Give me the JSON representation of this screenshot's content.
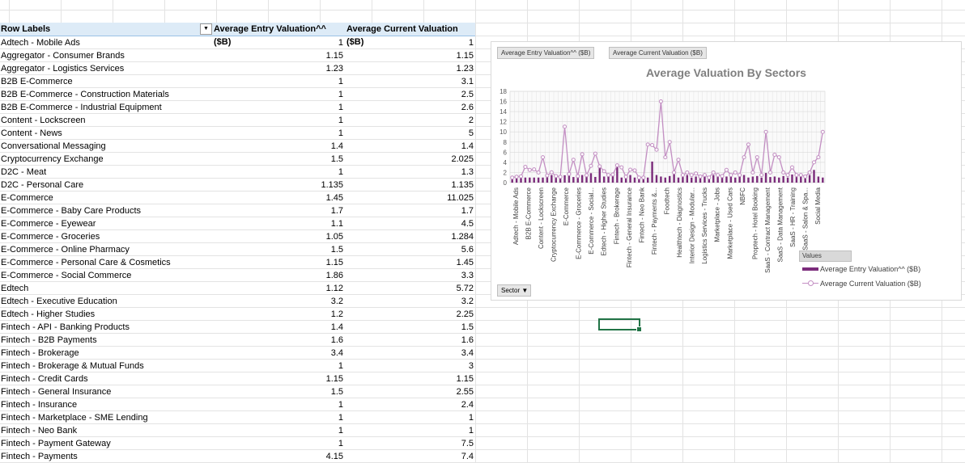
{
  "pivot": {
    "headers": {
      "row_labels": "Row Labels",
      "entry": "Average Entry Valuation^^ ($B)",
      "current": "Average Current Valuation ($B)"
    },
    "rows": [
      {
        "label": "Adtech - Mobile Ads",
        "entry": "1",
        "current": "1"
      },
      {
        "label": "Aggregator - Consumer Brands",
        "entry": "1.15",
        "current": "1.15"
      },
      {
        "label": "Aggregator - Logistics Services",
        "entry": "1.23",
        "current": "1.23"
      },
      {
        "label": "B2B E-Commerce",
        "entry": "1",
        "current": "3.1"
      },
      {
        "label": "B2B E-Commerce - Construction Materials",
        "entry": "1",
        "current": "2.5"
      },
      {
        "label": "B2B E-Commerce - Industrial Equipment",
        "entry": "1",
        "current": "2.6"
      },
      {
        "label": "Content - Lockscreen",
        "entry": "1",
        "current": "2"
      },
      {
        "label": "Content - News",
        "entry": "1",
        "current": "5"
      },
      {
        "label": "Conversational Messaging",
        "entry": "1.4",
        "current": "1.4"
      },
      {
        "label": "Cryptocurrency Exchange",
        "entry": "1.5",
        "current": "2.025"
      },
      {
        "label": "D2C - Meat",
        "entry": "1",
        "current": "1.3"
      },
      {
        "label": "D2C - Personal Care",
        "entry": "1.135",
        "current": "1.135"
      },
      {
        "label": "E-Commerce",
        "entry": "1.45",
        "current": "11.025"
      },
      {
        "label": "E-Commerce - Baby Care Products",
        "entry": "1.7",
        "current": "1.7"
      },
      {
        "label": "E-Commerce - Eyewear",
        "entry": "1.1",
        "current": "4.5"
      },
      {
        "label": "E-Commerce - Groceries",
        "entry": "1.05",
        "current": "1.284"
      },
      {
        "label": "E-Commerce - Online Pharmacy",
        "entry": "1.5",
        "current": "5.6"
      },
      {
        "label": "E-Commerce - Personal Care & Cosmetics",
        "entry": "1.15",
        "current": "1.45"
      },
      {
        "label": "E-Commerce - Social Commerce",
        "entry": "1.86",
        "current": "3.3"
      },
      {
        "label": "Edtech",
        "entry": "1.12",
        "current": "5.72"
      },
      {
        "label": "Edtech - Executive Education",
        "entry": "3.2",
        "current": "3.2"
      },
      {
        "label": "Edtech - Higher Studies",
        "entry": "1.2",
        "current": "2.25"
      },
      {
        "label": "Fintech - API - Banking Products",
        "entry": "1.4",
        "current": "1.5"
      },
      {
        "label": "Fintech - B2B Payments",
        "entry": "1.6",
        "current": "1.6"
      },
      {
        "label": "Fintech - Brokerage",
        "entry": "3.4",
        "current": "3.4"
      },
      {
        "label": "Fintech - Brokerage & Mutual Funds",
        "entry": "1",
        "current": "3"
      },
      {
        "label": "Fintech - Credit Cards",
        "entry": "1.15",
        "current": "1.15"
      },
      {
        "label": "Fintech - General Insurance",
        "entry": "1.5",
        "current": "2.55"
      },
      {
        "label": "Fintech - Insurance",
        "entry": "1",
        "current": "2.4"
      },
      {
        "label": "Fintech - Marketplace - SME Lending",
        "entry": "1",
        "current": "1"
      },
      {
        "label": "Fintech - Neo Bank",
        "entry": "1",
        "current": "1"
      },
      {
        "label": "Fintech - Payment Gateway",
        "entry": "1",
        "current": "7.5"
      },
      {
        "label": "Fintech - Payments",
        "entry": "4.15",
        "current": "7.4"
      }
    ]
  },
  "chart": {
    "field_buttons": [
      "Average Entry Valuation^^ ($B)",
      "Average Current Valuation ($B)"
    ],
    "axis_field_button": "Sector",
    "legend_title": "Values",
    "colors": {
      "entry": "#7b2c7b",
      "current": "#c38fc3"
    }
  },
  "chart_data": {
    "type": "bar",
    "title": "Average Valuation By Sectors",
    "xlabel": "",
    "ylabel": "",
    "ylim": [
      0,
      18
    ],
    "yticks": [
      0,
      2,
      4,
      6,
      8,
      10,
      12,
      14,
      16,
      18
    ],
    "grid": true,
    "legend": "bottom-right",
    "category_labels": [
      "Adtech - Mobile Ads",
      "B2B E-Commerce",
      "Content - Lockscreen",
      "Cryptocurrency Exchange",
      "E-Commerce",
      "E-Commerce - Groceries",
      "E-Commerce - Social...",
      "Edtech - Higher Studies",
      "Fintech - Brokerage",
      "Fintech - General Insurance",
      "Fintech - Neo Bank",
      "Fintech - Payments &...",
      "Foodtech",
      "Healthtech - Diagnostics",
      "Interior Design - Modular...",
      "Logistics Services - Trucks",
      "Marketplace - Jobs",
      "Marketplace - Used Cars",
      "NBFC",
      "Proptech - Hotel Booking",
      "SaaS - Contract Management",
      "SaaS - Data Management",
      "SaaS - HR - Training",
      "SaaS - Salon & Spa...",
      "Social Media"
    ],
    "series": [
      {
        "name": "Average Entry Valuation^^ ($B)",
        "kind": "bar",
        "values": [
          1,
          1.15,
          1.23,
          1,
          1,
          1,
          1,
          1,
          1.4,
          1.5,
          1,
          1.135,
          1.45,
          1.7,
          1.1,
          1.05,
          1.5,
          1.15,
          1.86,
          1.12,
          3.2,
          1.2,
          1.4,
          1.6,
          3.4,
          1,
          1.15,
          1.5,
          1,
          1,
          1,
          1,
          4.15,
          1.5,
          1.2,
          1,
          1.3,
          1.8,
          1,
          1.1,
          1.5,
          1,
          1.2,
          1,
          1.3,
          1,
          1.5,
          1.1,
          1,
          1.2,
          1.8,
          1,
          1.4,
          1.5,
          1,
          1.2,
          1.3,
          1,
          1.9,
          1.1,
          1.2,
          1,
          1.3,
          1,
          1.6,
          1.1,
          1.2,
          1,
          1.5,
          2.5,
          1.2,
          1
        ]
      },
      {
        "name": "Average Current Valuation ($B)",
        "kind": "line",
        "values": [
          1,
          1.15,
          1.23,
          3.1,
          2.5,
          2.6,
          2,
          5,
          1.4,
          2.025,
          1.3,
          1.135,
          11.025,
          1.7,
          4.5,
          1.284,
          5.6,
          1.45,
          3.3,
          5.72,
          3.2,
          2.25,
          1.5,
          1.6,
          3.4,
          3,
          1.15,
          2.55,
          2.4,
          1,
          1,
          7.5,
          7.4,
          6.5,
          16,
          5,
          8,
          2,
          4.5,
          1.5,
          2,
          1.5,
          1.8,
          1.2,
          1.5,
          1,
          2,
          1.5,
          1.3,
          2.5,
          1.5,
          2,
          1.5,
          5,
          7.5,
          2,
          5,
          1.5,
          10,
          2,
          5.5,
          5,
          2,
          1.5,
          3,
          1.5,
          1.5,
          1.2,
          2,
          4,
          5,
          10
        ]
      }
    ]
  }
}
